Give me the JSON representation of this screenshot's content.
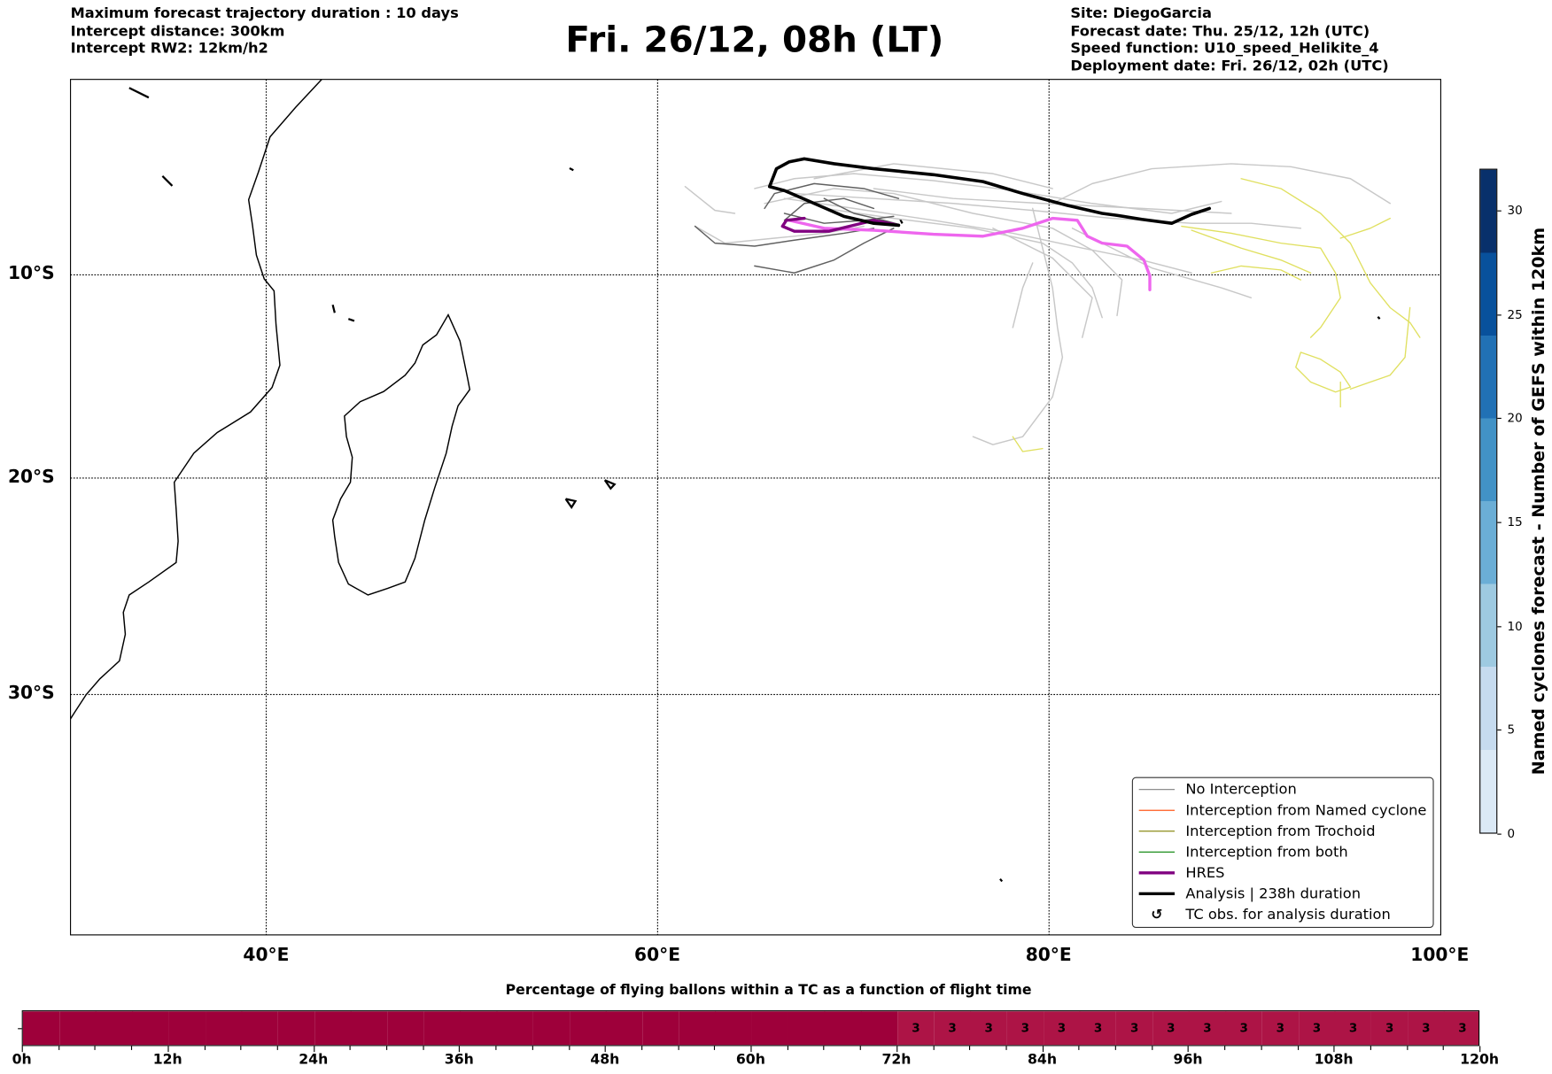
{
  "header": {
    "left": [
      "Maximum forecast trajectory duration : 10 days",
      "Intercept distance: 300km",
      "Intercept RW2: 12km/h2"
    ],
    "title": "Fri. 26/12, 08h (LT)",
    "right": [
      "Site: DiegoGarcia",
      "Forecast date: Thu. 25/12, 12h (UTC)",
      "Speed function: U10_speed_Helikite_4",
      "Deployment date: Fri. 26/12, 02h (UTC)"
    ]
  },
  "map": {
    "lat_labels": [
      "10°S",
      "20°S",
      "30°S"
    ],
    "lon_labels": [
      "40°E",
      "60°E",
      "80°E",
      "100°E"
    ],
    "colors": {
      "no_interception": "#808080",
      "named_cyclone": "#ff4500",
      "trochoid": "#808000",
      "both": "#008000",
      "hres": "#800080",
      "hres_track": "#ee66ee",
      "analysis": "#000000",
      "ensemble": "#c8c8c8",
      "ensemble_dark": "#606060",
      "named_track": "#e0e060"
    }
  },
  "legend": {
    "items": [
      {
        "label": "No Interception",
        "color": "#808080",
        "kind": "thin"
      },
      {
        "label": "Interception from Named cyclone",
        "color": "#ff4500",
        "kind": "thin"
      },
      {
        "label": "Interception from Trochoid",
        "color": "#808000",
        "kind": "thin"
      },
      {
        "label": "Interception from both",
        "color": "#008000",
        "kind": "thin"
      },
      {
        "label": "HRES",
        "color": "#800080",
        "kind": "thick"
      },
      {
        "label": "Analysis | 238h duration",
        "color": "#000000",
        "kind": "thick"
      },
      {
        "label": "TC obs. for analysis duration",
        "symbol": "↺",
        "kind": "symbol"
      }
    ]
  },
  "colorbar": {
    "label": "Named cyclones forecast - Number of GEFS within 120km",
    "ticks": [
      "0",
      "5",
      "10",
      "15",
      "20",
      "25",
      "30"
    ],
    "range": [
      0,
      32
    ],
    "colors": [
      "#dbe9f6",
      "#c6dbef",
      "#9ecae1",
      "#6baed6",
      "#4292c6",
      "#2171b5",
      "#08519c",
      "#08306b"
    ]
  },
  "chart_data": {
    "type": "heatmap",
    "title": "Percentage of flying ballons within a TC as a function of flight time",
    "xlabel": "",
    "xlim": [
      0,
      120
    ],
    "x_tick_labels": [
      "0h",
      "12h",
      "24h",
      "36h",
      "48h",
      "60h",
      "72h",
      "84h",
      "96h",
      "108h",
      "120h"
    ],
    "bin_hours": 3,
    "values": [
      0,
      0,
      0,
      0,
      0,
      0,
      0,
      0,
      0,
      0,
      0,
      0,
      0,
      0,
      0,
      0,
      0,
      0,
      0,
      0,
      0,
      0,
      0,
      0,
      3,
      3,
      3,
      3,
      3,
      3,
      3,
      3,
      3,
      3,
      3,
      3,
      3,
      3,
      3,
      3
    ],
    "value_labels": [
      "",
      "",
      "",
      "",
      "",
      "",
      "",
      "",
      "",
      "",
      "",
      "",
      "",
      "",
      "",
      "",
      "",
      "",
      "",
      "",
      "",
      "",
      "",
      "",
      "3",
      "3",
      "3",
      "3",
      "3",
      "3",
      "3",
      "3",
      "3",
      "3",
      "3",
      "3",
      "3",
      "3",
      "3",
      "3"
    ],
    "colors": {
      "0": "#9e003a",
      "3": "#ad1446"
    }
  }
}
